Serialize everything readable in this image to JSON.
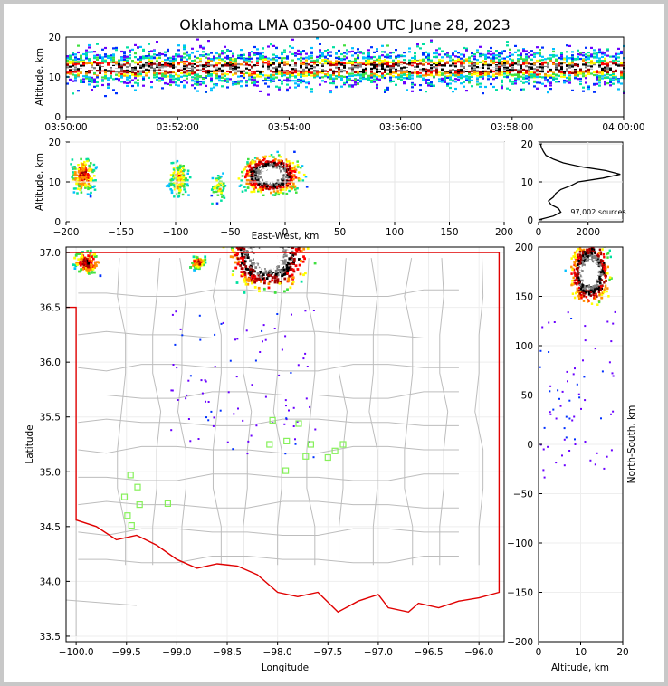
{
  "title": "Oklahoma LMA 0350-0400 UTC June 28, 2023",
  "colors": {
    "border": "#e00000",
    "county": "#bdbdbd",
    "station": "#86f05a",
    "density": [
      "#6a00ff",
      "#0030ff",
      "#00c0ff",
      "#00e0a0",
      "#40e040",
      "#ffff00",
      "#ff9000",
      "#ff0000",
      "#a00000",
      "#000000",
      "#808080",
      "#ffffff"
    ]
  },
  "chart_data": [
    {
      "id": "time-altitude",
      "type": "heatmap",
      "ylabel": "Altitude, km",
      "ylim": [
        0,
        20
      ],
      "yticks": [
        "0",
        "10",
        "20"
      ],
      "xticks": [
        "03:50:00",
        "03:52:00",
        "03:54:00",
        "03:56:00",
        "03:58:00",
        "04:00:00"
      ]
    },
    {
      "id": "eastwest-altitude",
      "type": "heatmap",
      "xlabel": "East-West, km",
      "ylabel": "Altitude, km",
      "xlim": [
        -200,
        200
      ],
      "ylim": [
        0,
        20
      ],
      "xticks": [
        "−200",
        "−150",
        "−100",
        "−50",
        "0",
        "50",
        "100",
        "150",
        "200"
      ],
      "yticks": [
        "0",
        "10",
        "20"
      ]
    },
    {
      "id": "altitude-histogram",
      "type": "line",
      "xticks": [
        "0",
        "2000"
      ],
      "yticks": [
        "0",
        "10",
        "20"
      ],
      "annotation": "97,002 sources",
      "profile": [
        [
          0,
          0
        ],
        [
          600,
          1
        ],
        [
          900,
          2
        ],
        [
          800,
          3
        ],
        [
          500,
          4
        ],
        [
          400,
          5
        ],
        [
          600,
          6
        ],
        [
          700,
          7
        ],
        [
          900,
          8
        ],
        [
          1300,
          9
        ],
        [
          1600,
          10
        ],
        [
          2600,
          11
        ],
        [
          3300,
          12
        ],
        [
          2700,
          13
        ],
        [
          1700,
          14
        ],
        [
          1000,
          15
        ],
        [
          600,
          16
        ],
        [
          300,
          17
        ],
        [
          200,
          18
        ],
        [
          120,
          19
        ],
        [
          80,
          20
        ]
      ]
    },
    {
      "id": "plan-view",
      "type": "scatter",
      "xlabel": "Longitude",
      "ylabel": "Latitude",
      "xlim": [
        -100.1,
        -95.75
      ],
      "ylim": [
        33.45,
        37.05
      ],
      "xticks": [
        "−100.0",
        "−99.5",
        "−99.0",
        "−98.5",
        "−98.0",
        "−97.5",
        "−97.0",
        "−96.5",
        "−96.0"
      ],
      "yticks": [
        "33.5",
        "34.0",
        "34.5",
        "35.0",
        "35.5",
        "36.0",
        "36.5",
        "37.0"
      ],
      "stations": [
        [
          -99.46,
          34.97
        ],
        [
          -99.39,
          34.86
        ],
        [
          -99.52,
          34.77
        ],
        [
          -99.37,
          34.7
        ],
        [
          -99.09,
          34.71
        ],
        [
          -99.49,
          34.6
        ],
        [
          -99.45,
          34.51
        ],
        [
          -98.05,
          35.47
        ],
        [
          -97.79,
          35.44
        ],
        [
          -98.08,
          35.25
        ],
        [
          -97.91,
          35.28
        ],
        [
          -97.67,
          35.25
        ],
        [
          -97.72,
          35.14
        ],
        [
          -97.43,
          35.19
        ],
        [
          -97.35,
          35.25
        ],
        [
          -97.5,
          35.13
        ],
        [
          -97.92,
          35.01
        ]
      ]
    },
    {
      "id": "altitude-northsouth",
      "type": "heatmap",
      "xlabel": "Altitude, km",
      "ylabel": "North-South, km",
      "xlim": [
        0,
        20
      ],
      "ylim": [
        -200,
        200
      ],
      "xticks": [
        "0",
        "10",
        "20"
      ],
      "yticks": [
        "−200",
        "−150",
        "−100",
        "−50",
        "0",
        "50",
        "100",
        "150",
        "200"
      ]
    }
  ]
}
